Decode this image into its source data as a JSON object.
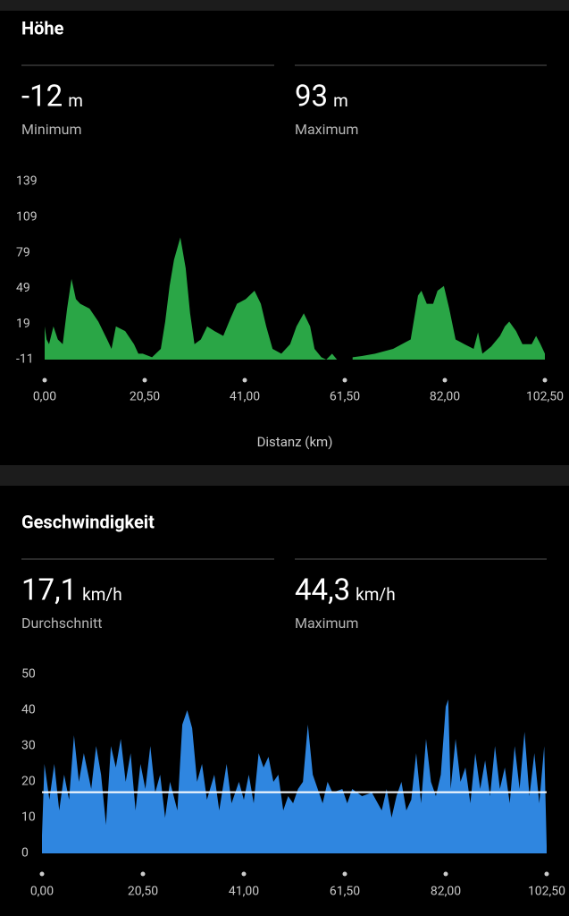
{
  "sections": [
    {
      "title": "Höhe",
      "stats": [
        {
          "value": "-12",
          "unit": "m",
          "label": "Minimum"
        },
        {
          "value": "93",
          "unit": "m",
          "label": "Maximum"
        }
      ]
    },
    {
      "title": "Geschwindigkeit",
      "stats": [
        {
          "value": "17,1",
          "unit": "km/h",
          "label": "Durchschnitt"
        },
        {
          "value": "44,3",
          "unit": "km/h",
          "label": "Maximum"
        }
      ]
    }
  ],
  "chart_data": [
    {
      "type": "area",
      "x_label": "Distanz (km)",
      "color": "#2aa646",
      "x": [
        0,
        0.4,
        0.9,
        1.8,
        2.7,
        3.7,
        4.6,
        5.5,
        6.4,
        7.3,
        9.2,
        11.0,
        12.8,
        13.7,
        14.6,
        16.5,
        18.3,
        19.2,
        20.1,
        22.0,
        23.8,
        24.7,
        25.6,
        26.5,
        27.8,
        28.9,
        29.8,
        30.7,
        32.0,
        33.3,
        34.8,
        36.6,
        38.1,
        39.4,
        41.2,
        43.0,
        44.3,
        45.4,
        46.7,
        48.5,
        50.3,
        51.6,
        53.1,
        54.4,
        55.3,
        56.7,
        57.7,
        58.9,
        59.9,
        61.5,
        63.1,
        65.0,
        67.7,
        71.4,
        75.0,
        76.5,
        77.2,
        78.3,
        79.6,
        80.5,
        81.8,
        82.9,
        84.2,
        86.0,
        87.9,
        88.8,
        89.7,
        91.5,
        93.3,
        94.3,
        95.2,
        96.6,
        97.9,
        99.8,
        100.7,
        101.6,
        102.5
      ],
      "values": [
        17,
        6,
        2,
        17,
        6,
        2,
        32,
        57,
        40,
        36,
        32,
        21,
        6,
        -2,
        17,
        13,
        2,
        -6,
        -6,
        -9,
        -2,
        21,
        51,
        73,
        92,
        66,
        28,
        2,
        6,
        17,
        13,
        9,
        24,
        36,
        40,
        47,
        36,
        17,
        -2,
        -6,
        2,
        17,
        28,
        17,
        -2,
        -9,
        -11,
        -6,
        -11,
        null,
        -9,
        -8,
        -6,
        -2,
        6,
        43,
        47,
        36,
        36,
        47,
        51,
        32,
        6,
        2,
        -2,
        12,
        -6,
        0,
        9,
        17,
        21,
        13,
        2,
        2,
        9,
        2,
        -6
      ],
      "xlim": [
        0,
        102.5
      ],
      "ylim": [
        -11,
        139
      ],
      "yticks": [
        -11,
        19,
        49,
        79,
        109,
        139
      ],
      "xticks": [
        {
          "value": 0,
          "label": "0,00"
        },
        {
          "value": 20.5,
          "label": "20,50"
        },
        {
          "value": 41,
          "label": "41,00"
        },
        {
          "value": 61.5,
          "label": "61,50"
        },
        {
          "value": 82,
          "label": "82,00"
        },
        {
          "value": 102.5,
          "label": "102,50"
        }
      ]
    },
    {
      "type": "area",
      "color": "#2f86e0",
      "reference_line": 17.1,
      "reference_color": "#ffffff",
      "x": [
        0,
        0.5,
        1.5,
        2.5,
        3.5,
        4.5,
        5.5,
        6.5,
        7.5,
        8.5,
        10,
        11,
        12,
        13,
        14,
        15,
        16,
        17,
        18,
        19,
        20,
        21,
        22,
        23,
        24,
        25,
        26,
        27.5,
        28.5,
        29.5,
        30.5,
        31.5,
        32.5,
        33.5,
        35,
        36,
        37.5,
        38.5,
        40,
        41,
        42,
        43,
        44,
        45,
        46,
        47,
        48,
        49,
        50,
        51,
        52,
        53,
        54,
        55,
        56,
        57,
        58,
        59,
        61,
        62,
        63,
        65,
        67,
        69,
        70,
        71,
        72,
        73,
        74,
        75,
        76,
        77,
        78,
        79,
        80,
        81,
        82,
        82.5,
        83,
        84,
        85,
        86,
        87,
        88,
        89,
        90,
        91,
        92,
        93,
        94,
        95,
        96,
        97,
        98,
        99,
        100,
        101,
        102,
        102.5
      ],
      "values": [
        5,
        25,
        15,
        25,
        12,
        22,
        15,
        33,
        20,
        28,
        18,
        30,
        22,
        8,
        30,
        24,
        32,
        20,
        28,
        12,
        25,
        18,
        30,
        17,
        22,
        10,
        20,
        12,
        36,
        40,
        35,
        20,
        25,
        15,
        22,
        12,
        25,
        14,
        20,
        15,
        22,
        14,
        28,
        24,
        27,
        20,
        22,
        12,
        16,
        14,
        18,
        20,
        36,
        22,
        18,
        14,
        20,
        17,
        18,
        14,
        18,
        16,
        17,
        12,
        18,
        10,
        16,
        20,
        12,
        15,
        28,
        14,
        32,
        20,
        16,
        22,
        41,
        43,
        18,
        32,
        20,
        24,
        14,
        28,
        18,
        26,
        16,
        30,
        18,
        24,
        14,
        30,
        18,
        34,
        16,
        28,
        14,
        30,
        2
      ],
      "xlim": [
        0,
        102.5
      ],
      "ylim": [
        0,
        50
      ],
      "yticks": [
        0,
        10,
        20,
        30,
        40,
        50
      ],
      "xticks": [
        {
          "value": 0,
          "label": "0,00"
        },
        {
          "value": 20.5,
          "label": "20,50"
        },
        {
          "value": 41,
          "label": "41,00"
        },
        {
          "value": 61.5,
          "label": "61,50"
        },
        {
          "value": 82,
          "label": "82,00"
        },
        {
          "value": 102.5,
          "label": "102,50"
        }
      ]
    }
  ]
}
